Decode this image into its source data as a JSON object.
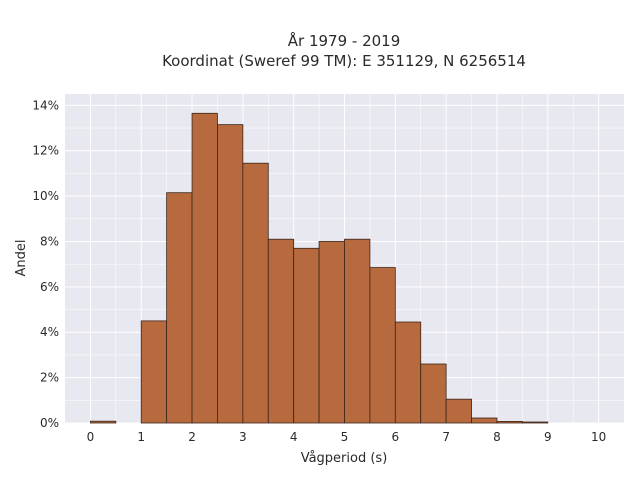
{
  "chart_data": {
    "type": "bar",
    "title": "År 1979 - 2019",
    "subtitle": "Koordinat (Sweref 99 TM): E 351129, N 6256514",
    "xlabel": "Vågperiod (s)",
    "ylabel": "Andel",
    "bin_width": 0.5,
    "xlim": [
      -0.5,
      10.5
    ],
    "ylim": [
      0,
      14.5
    ],
    "x_ticks": [
      0,
      1,
      2,
      3,
      4,
      5,
      6,
      7,
      8,
      9,
      10
    ],
    "x_tick_labels": [
      "0",
      "1",
      "2",
      "3",
      "4",
      "5",
      "6",
      "7",
      "8",
      "9",
      "10"
    ],
    "y_ticks": [
      0,
      2,
      4,
      6,
      8,
      10,
      12,
      14
    ],
    "y_tick_labels": [
      "0%",
      "2%",
      "4%",
      "6%",
      "8%",
      "10%",
      "12%",
      "14%"
    ],
    "grid": true,
    "bar_color": "#b86a3f",
    "bar_edge_color": "#3b2418",
    "plot_background": "#e8e8f1",
    "bins": [
      {
        "x": 0.0,
        "value": 0.08
      },
      {
        "x": 0.5,
        "value": 0.0
      },
      {
        "x": 1.0,
        "value": 4.5
      },
      {
        "x": 1.5,
        "value": 10.15
      },
      {
        "x": 2.0,
        "value": 13.65
      },
      {
        "x": 2.5,
        "value": 13.15
      },
      {
        "x": 3.0,
        "value": 11.45
      },
      {
        "x": 3.5,
        "value": 8.1
      },
      {
        "x": 4.0,
        "value": 7.7
      },
      {
        "x": 4.5,
        "value": 8.0
      },
      {
        "x": 5.0,
        "value": 8.1
      },
      {
        "x": 5.5,
        "value": 6.85
      },
      {
        "x": 6.0,
        "value": 4.45
      },
      {
        "x": 6.5,
        "value": 2.6
      },
      {
        "x": 7.0,
        "value": 1.05
      },
      {
        "x": 7.5,
        "value": 0.22
      },
      {
        "x": 8.0,
        "value": 0.07
      },
      {
        "x": 8.5,
        "value": 0.02
      }
    ]
  }
}
